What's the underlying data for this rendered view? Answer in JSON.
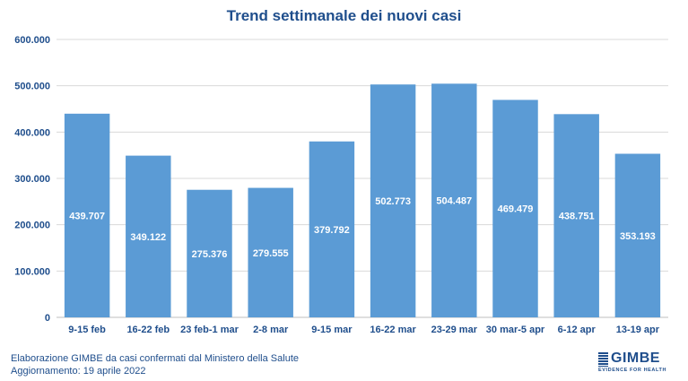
{
  "chart_data": {
    "type": "bar",
    "title": "Trend settimanale dei nuovi casi",
    "categories": [
      "9-15 feb",
      "16-22 feb",
      "23 feb-1 mar",
      "2-8 mar",
      "9-15 mar",
      "16-22 mar",
      "23-29 mar",
      "30 mar-5 apr",
      "6-12 apr",
      "13-19 apr"
    ],
    "values": [
      439707,
      349122,
      275376,
      279555,
      379792,
      502773,
      504487,
      469479,
      438751,
      353193
    ],
    "value_labels": [
      "439.707",
      "349.122",
      "275.376",
      "279.555",
      "379.792",
      "502.773",
      "504.487",
      "469.479",
      "438.751",
      "353.193"
    ],
    "y_ticks": [
      0,
      100000,
      200000,
      300000,
      400000,
      500000,
      600000
    ],
    "y_tick_labels": [
      "0",
      "100.000",
      "200.000",
      "300.000",
      "400.000",
      "500.000",
      "600.000"
    ],
    "ylim": [
      0,
      600000
    ],
    "grid": true,
    "bar_color": "#5b9bd5"
  },
  "footer": {
    "source_line1": "Elaborazione GIMBE da casi confermati dal Ministero della Salute",
    "source_line2": "Aggiornamento: 19 aprile 2022"
  },
  "logo": {
    "name": "GIMBE",
    "tagline": "EVIDENCE FOR HEALTH"
  }
}
